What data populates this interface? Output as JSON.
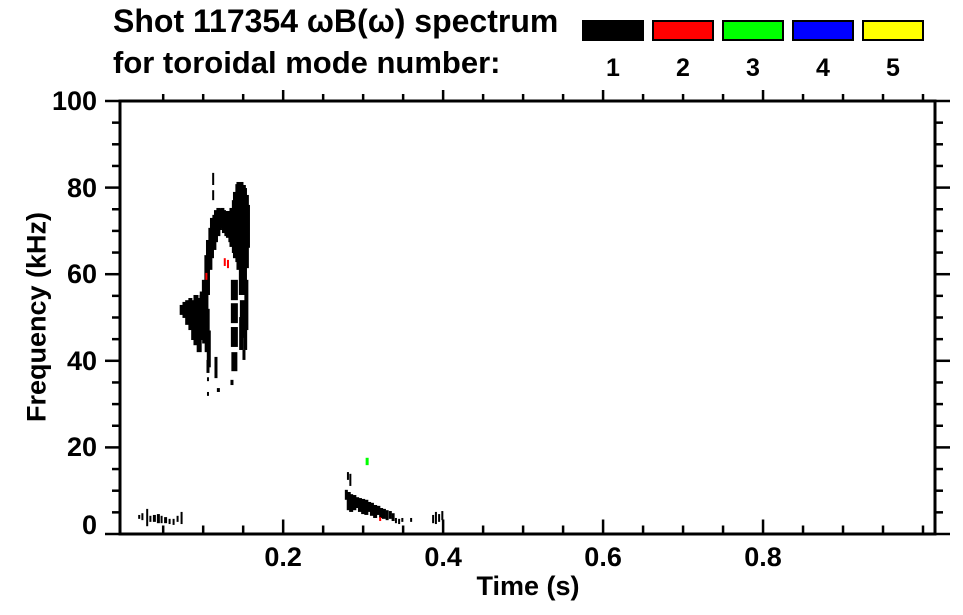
{
  "header": {
    "title": "Shot 117354 ωB(ω) spectrum",
    "subtitle": "for toroidal mode number:"
  },
  "legend": {
    "items": [
      {
        "label": "1",
        "color": "#000000"
      },
      {
        "label": "2",
        "color": "#ff0000"
      },
      {
        "label": "3",
        "color": "#00ff00"
      },
      {
        "label": "4",
        "color": "#0000ff"
      },
      {
        "label": "5",
        "color": "#ffff00"
      }
    ]
  },
  "chart_data": {
    "type": "scatter",
    "title": "Shot 117354 ωB(ω) spectrum for toroidal mode number: 1 2 3 4 5",
    "xlabel": "Time (s)",
    "ylabel": "Frequency (kHz)",
    "xlim": [
      -0.004,
      1.015
    ],
    "ylim": [
      0,
      100
    ],
    "x_major_ticks": [
      0.2,
      0.4,
      0.6,
      0.8
    ],
    "x_minor_step": 0.05,
    "y_major_ticks": [
      0,
      20,
      40,
      60,
      80,
      100
    ],
    "y_minor_step": 5,
    "grid": false,
    "legend_position": "top-right",
    "frame_color": "#000000",
    "series": [
      {
        "name": "n=1",
        "mode": 1,
        "color": "#000000",
        "strokes": [
          [
            0.02,
            3.5,
            4.4,
            2
          ],
          [
            0.024,
            3.2,
            4.8,
            2
          ],
          [
            0.03,
            1.8,
            5.8,
            2
          ],
          [
            0.034,
            2.8,
            4.2,
            2
          ],
          [
            0.039,
            2.8,
            4.4,
            3
          ],
          [
            0.044,
            2.5,
            4.6,
            3
          ],
          [
            0.048,
            2.5,
            4.2,
            2
          ],
          [
            0.053,
            2.5,
            3.9,
            3
          ],
          [
            0.058,
            2.3,
            3.5,
            2
          ],
          [
            0.063,
            2.1,
            3.5,
            2
          ],
          [
            0.068,
            2.8,
            4.2,
            2
          ],
          [
            0.073,
            2.3,
            5.1,
            2
          ],
          [
            0.0725,
            50.6,
            52.9,
            3
          ],
          [
            0.076,
            49.9,
            53.6,
            3
          ],
          [
            0.08,
            48.3,
            54.0,
            4
          ],
          [
            0.084,
            47.1,
            54.5,
            4
          ],
          [
            0.0875,
            44.8,
            54.0,
            4
          ],
          [
            0.091,
            43.6,
            55.2,
            5
          ],
          [
            0.095,
            42.0,
            54.5,
            5
          ],
          [
            0.0985,
            44.8,
            55.2,
            5
          ],
          [
            0.0995,
            47.0,
            56.0,
            6
          ],
          [
            0.1015,
            46.7,
            58.7,
            5
          ],
          [
            0.1025,
            44.0,
            57.0,
            6
          ],
          [
            0.104,
            51.7,
            64.4,
            4
          ],
          [
            0.105,
            42.0,
            52.0,
            5
          ],
          [
            0.106,
            55.2,
            67.9,
            4
          ],
          [
            0.106,
            37.2,
            40.2,
            3
          ],
          [
            0.106,
            35.3,
            36.2,
            2
          ],
          [
            0.106,
            31.9,
            32.8,
            2
          ],
          [
            0.107,
            38.5,
            47.0,
            4
          ],
          [
            0.109,
            61.0,
            70.7,
            4
          ],
          [
            0.111,
            63.7,
            73.0,
            4
          ],
          [
            0.1125,
            80.6,
            83.4,
            2
          ],
          [
            0.1125,
            77.1,
            79.4,
            2
          ],
          [
            0.114,
            65.6,
            73.7,
            4
          ],
          [
            0.116,
            67.4,
            74.8,
            4
          ],
          [
            0.116,
            36.0,
            40.9,
            3
          ],
          [
            0.119,
            68.8,
            75.3,
            4
          ],
          [
            0.119,
            32.8,
            33.7,
            3
          ],
          [
            0.121,
            70.2,
            75.1,
            4
          ],
          [
            0.124,
            70.7,
            75.3,
            4
          ],
          [
            0.126,
            69.5,
            74.8,
            4
          ],
          [
            0.129,
            68.8,
            74.4,
            4
          ],
          [
            0.131,
            68.4,
            74.6,
            4
          ],
          [
            0.134,
            67.4,
            74.4,
            4
          ],
          [
            0.136,
            66.3,
            75.3,
            5
          ],
          [
            0.136,
            34.4,
            35.6,
            3
          ],
          [
            0.139,
            64.9,
            77.1,
            5
          ],
          [
            0.139,
            54.0,
            58.7,
            7
          ],
          [
            0.139,
            48.7,
            53.3,
            7
          ],
          [
            0.139,
            43.2,
            47.8,
            7
          ],
          [
            0.139,
            37.6,
            42.0,
            6
          ],
          [
            0.141,
            63.7,
            79.0,
            6
          ],
          [
            0.144,
            62.8,
            80.8,
            6
          ],
          [
            0.146,
            61.0,
            81.3,
            7
          ],
          [
            0.1475,
            42.5,
            50.1,
            4
          ],
          [
            0.149,
            55.2,
            80.6,
            7
          ],
          [
            0.149,
            45.3,
            54.0,
            5
          ],
          [
            0.151,
            55.9,
            79.9,
            6
          ],
          [
            0.151,
            40.2,
            42.5,
            3
          ],
          [
            0.1525,
            42.5,
            50.1,
            4
          ],
          [
            0.154,
            61.4,
            78.3,
            5
          ],
          [
            0.154,
            47.1,
            58.7,
            4
          ],
          [
            0.156,
            66.1,
            76.0,
            4
          ],
          [
            0.279,
            7.9,
            10.2,
            3
          ],
          [
            0.281,
            12.5,
            14.3,
            2
          ],
          [
            0.282,
            5.5,
            9.7,
            4
          ],
          [
            0.284,
            11.1,
            13.9,
            2
          ],
          [
            0.285,
            5.1,
            9.2,
            4
          ],
          [
            0.289,
            5.5,
            9.0,
            4
          ],
          [
            0.2925,
            6.0,
            8.5,
            4
          ],
          [
            0.296,
            5.1,
            8.3,
            4
          ],
          [
            0.3,
            4.6,
            8.1,
            4
          ],
          [
            0.304,
            4.4,
            7.9,
            4
          ],
          [
            0.3075,
            5.1,
            7.4,
            4
          ],
          [
            0.311,
            4.2,
            7.2,
            4
          ],
          [
            0.315,
            3.7,
            6.7,
            4
          ],
          [
            0.319,
            4.4,
            6.5,
            4
          ],
          [
            0.3225,
            3.7,
            6.0,
            4
          ],
          [
            0.326,
            3.5,
            5.8,
            4
          ],
          [
            0.33,
            3.2,
            5.5,
            3
          ],
          [
            0.334,
            3.5,
            5.3,
            3
          ],
          [
            0.3375,
            3.0,
            4.8,
            3
          ],
          [
            0.341,
            2.5,
            3.7,
            2
          ],
          [
            0.345,
            2.3,
            3.5,
            2
          ],
          [
            0.349,
            2.8,
            3.7,
            2
          ],
          [
            0.36,
            2.8,
            3.7,
            2
          ],
          [
            0.3875,
            2.5,
            4.4,
            2
          ],
          [
            0.391,
            2.3,
            5.1,
            2
          ],
          [
            0.395,
            2.8,
            4.6,
            2
          ],
          [
            0.399,
            3.2,
            5.3,
            2
          ]
        ]
      },
      {
        "name": "n=2",
        "mode": 2,
        "color": "#ff0000",
        "strokes": [
          [
            0.104,
            58.7,
            60.3,
            2
          ],
          [
            0.127,
            61.9,
            63.7,
            2
          ],
          [
            0.131,
            61.4,
            63.3,
            2
          ],
          [
            0.3213,
            3.0,
            3.9,
            2
          ]
        ]
      },
      {
        "name": "n=3",
        "mode": 3,
        "color": "#00ff00",
        "strokes": [
          [
            0.305,
            15.9,
            17.6,
            3
          ]
        ]
      },
      {
        "name": "n=4",
        "mode": 4,
        "color": "#0000ff",
        "strokes": []
      },
      {
        "name": "n=5",
        "mode": 5,
        "color": "#ffff00",
        "strokes": []
      }
    ]
  }
}
